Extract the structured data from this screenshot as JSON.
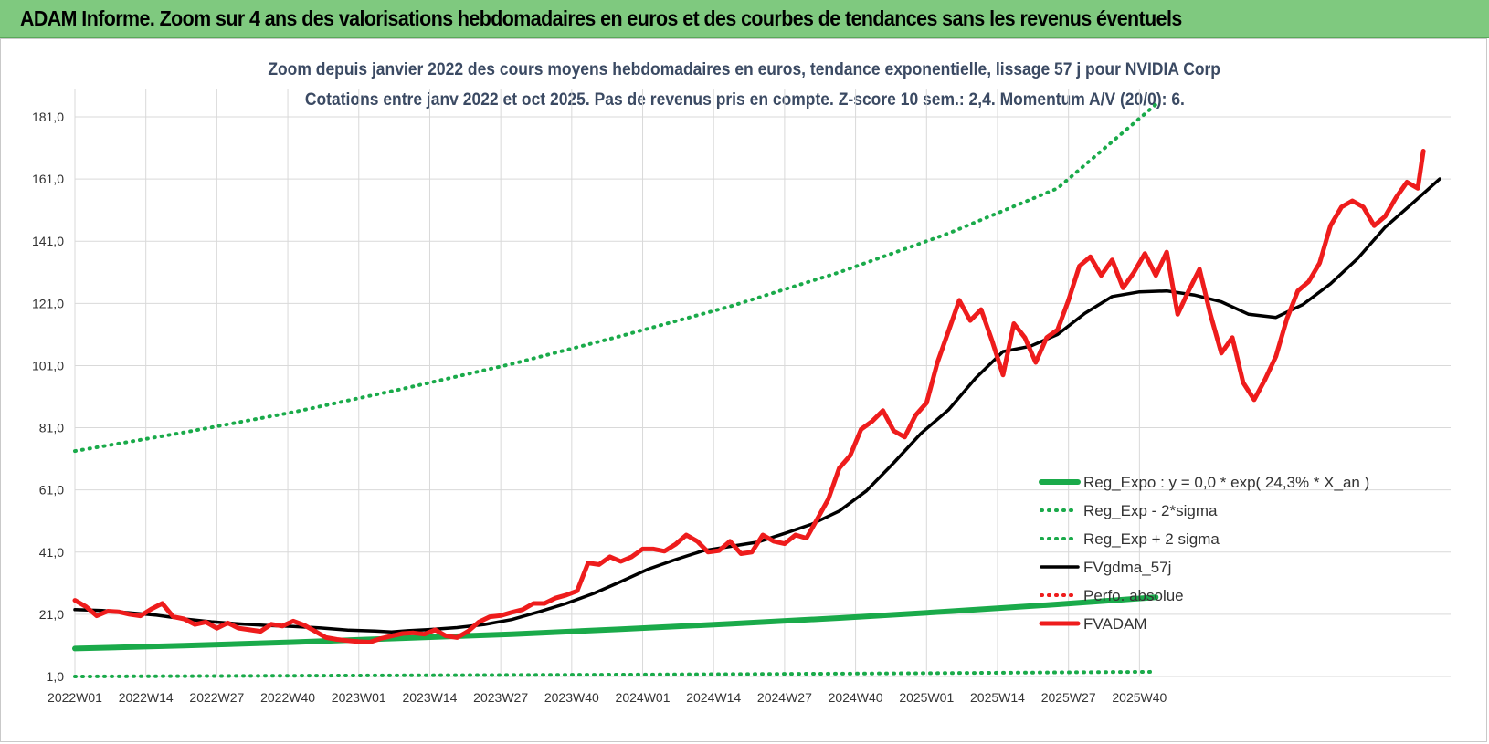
{
  "banner": {
    "title": "ADAM Informe. Zoom sur 4 ans des valorisations hebdomadaires en euros et des courbes de tendances sans les revenus éventuels"
  },
  "chart_data": {
    "type": "line",
    "title_line1": "Zoom depuis janvier 2022 des cours moyens hebdomadaires en euros, tendance exponentielle, lissage 57 j pour NVIDIA Corp",
    "title_line2": "Cotations entre janv 2022 et oct 2025. Pas de revenus pris en compte. Z-score 10 sem.: 2,4. Momentum A/V (20/0): 6.",
    "xlabel": "",
    "ylabel": "",
    "ylim": [
      1,
      181
    ],
    "yticks": [
      "1,0",
      "21,0",
      "41,0",
      "61,0",
      "81,0",
      "101,0",
      "121,0",
      "141,0",
      "161,0",
      "181,0"
    ],
    "xticks": [
      "2022W01",
      "2022W14",
      "2022W27",
      "2022W40",
      "2023W01",
      "2023W14",
      "2023W27",
      "2023W40",
      "2024W01",
      "2024W14",
      "2024W27",
      "2024W40",
      "2025W01",
      "2025W14",
      "2025W27",
      "2025W40"
    ],
    "grid": true,
    "legend_position": "bottom-right",
    "colors": {
      "green": "#1aaa4a",
      "black": "#000000",
      "red": "#ee1c1c"
    },
    "series": [
      {
        "name": "Reg_Expo : y = 0,0 * exp( 24,3% * X_an )",
        "style": "solid-green",
        "points": [
          [
            0,
            10
          ],
          [
            20,
            10.9
          ],
          [
            40,
            12
          ],
          [
            60,
            13.3
          ],
          [
            80,
            14.6
          ],
          [
            100,
            16.2
          ],
          [
            120,
            17.9
          ],
          [
            140,
            19.8
          ],
          [
            160,
            21.9
          ],
          [
            180,
            24.2
          ],
          [
            198,
            26.5
          ]
        ]
      },
      {
        "name": "Reg_Exp - 2*sigma",
        "style": "dotted-green",
        "points": [
          [
            0,
            1.0
          ],
          [
            50,
            1.3
          ],
          [
            100,
            1.6
          ],
          [
            150,
            2.0
          ],
          [
            198,
            2.5
          ]
        ]
      },
      {
        "name": "Reg_Exp + 2 sigma",
        "style": "dotted-green",
        "points": [
          [
            0,
            73.5
          ],
          [
            20,
            79.5
          ],
          [
            40,
            86
          ],
          [
            60,
            93.5
          ],
          [
            80,
            101.5
          ],
          [
            100,
            110.5
          ],
          [
            120,
            120
          ],
          [
            140,
            131
          ],
          [
            160,
            143.5
          ],
          [
            180,
            158
          ],
          [
            198,
            185
          ]
        ]
      },
      {
        "name": "FVgdma_57j",
        "style": "solid-black",
        "points": [
          [
            0,
            22.5
          ],
          [
            5,
            22.2
          ],
          [
            10,
            21.5
          ],
          [
            15,
            20.7
          ],
          [
            20,
            19.5
          ],
          [
            25,
            18.6
          ],
          [
            30,
            17.9
          ],
          [
            35,
            17.4
          ],
          [
            40,
            17.1
          ],
          [
            45,
            16.6
          ],
          [
            50,
            15.9
          ],
          [
            55,
            15.6
          ],
          [
            58,
            15.3
          ],
          [
            61,
            15.7
          ],
          [
            65,
            16.1
          ],
          [
            70,
            16.7
          ],
          [
            75,
            17.7
          ],
          [
            80,
            19.3
          ],
          [
            85,
            21.8
          ],
          [
            90,
            24.5
          ],
          [
            95,
            27.7
          ],
          [
            100,
            31.5
          ],
          [
            105,
            35.5
          ],
          [
            110,
            38.6
          ],
          [
            115,
            41.4
          ],
          [
            120,
            42.8
          ],
          [
            125,
            44.2
          ],
          [
            130,
            47
          ],
          [
            135,
            50
          ],
          [
            140,
            54.2
          ],
          [
            145,
            60.7
          ],
          [
            150,
            69.7
          ],
          [
            155,
            79.2
          ],
          [
            160,
            86.7
          ],
          [
            165,
            97
          ],
          [
            170,
            105.5
          ],
          [
            175,
            107.2
          ],
          [
            180,
            111
          ],
          [
            185,
            117.8
          ],
          [
            190,
            123.2
          ],
          [
            195,
            124.7
          ],
          [
            200,
            125
          ],
          [
            205,
            123.7
          ],
          [
            210,
            121.5
          ],
          [
            215,
            117.5
          ],
          [
            220,
            116.5
          ],
          [
            225,
            120.7
          ],
          [
            230,
            127.3
          ],
          [
            235,
            135.5
          ],
          [
            240,
            145.5
          ],
          [
            245,
            153.2
          ],
          [
            250,
            161
          ]
        ]
      },
      {
        "name": "Perfo. absolue",
        "style": "dotted-red",
        "points": []
      },
      {
        "name": "FVADAM",
        "style": "solid-red",
        "points": [
          [
            0,
            25.5
          ],
          [
            2,
            23.5
          ],
          [
            4,
            20.5
          ],
          [
            6,
            22
          ],
          [
            8,
            21.8
          ],
          [
            10,
            21
          ],
          [
            12,
            20.5
          ],
          [
            14,
            22.7
          ],
          [
            16,
            24.5
          ],
          [
            18,
            20.2
          ],
          [
            20,
            19.5
          ],
          [
            22,
            17.7
          ],
          [
            24,
            18.5
          ],
          [
            26,
            16.5
          ],
          [
            28,
            18.2
          ],
          [
            30,
            16.5
          ],
          [
            32,
            16
          ],
          [
            34,
            15.5
          ],
          [
            36,
            17.8
          ],
          [
            38,
            17.2
          ],
          [
            40,
            18.8
          ],
          [
            42,
            17.5
          ],
          [
            44,
            15.5
          ],
          [
            46,
            13.5
          ],
          [
            48,
            12.9
          ],
          [
            50,
            12.5
          ],
          [
            52,
            12.2
          ],
          [
            54,
            12
          ],
          [
            56,
            13.2
          ],
          [
            58,
            14
          ],
          [
            60,
            14.8
          ],
          [
            62,
            15
          ],
          [
            64,
            14.6
          ],
          [
            66,
            16
          ],
          [
            68,
            14
          ],
          [
            70,
            13.5
          ],
          [
            72,
            15.5
          ],
          [
            74,
            18.5
          ],
          [
            76,
            20.2
          ],
          [
            78,
            20.6
          ],
          [
            80,
            21.6
          ],
          [
            82,
            22.5
          ],
          [
            84,
            24.5
          ],
          [
            86,
            24.5
          ],
          [
            88,
            26.2
          ],
          [
            90,
            27.2
          ],
          [
            92,
            28.5
          ],
          [
            94,
            37.5
          ],
          [
            96,
            37
          ],
          [
            98,
            39.5
          ],
          [
            100,
            38
          ],
          [
            102,
            39.5
          ],
          [
            104,
            42
          ],
          [
            106,
            42
          ],
          [
            108,
            41.3
          ],
          [
            110,
            43.5
          ],
          [
            112,
            46.5
          ],
          [
            114,
            44.5
          ],
          [
            116,
            41
          ],
          [
            118,
            41.5
          ],
          [
            120,
            44.5
          ],
          [
            122,
            40.5
          ],
          [
            124,
            41
          ],
          [
            126,
            46.5
          ],
          [
            128,
            44.5
          ],
          [
            130,
            43.7
          ],
          [
            132,
            46.5
          ],
          [
            134,
            45.5
          ],
          [
            136,
            51.7
          ],
          [
            138,
            58
          ],
          [
            140,
            68
          ],
          [
            142,
            72
          ],
          [
            144,
            80.5
          ],
          [
            146,
            83
          ],
          [
            148,
            86.5
          ],
          [
            150,
            80
          ],
          [
            152,
            78
          ],
          [
            154,
            85
          ],
          [
            156,
            89
          ],
          [
            158,
            102
          ],
          [
            160,
            112
          ],
          [
            162,
            122
          ],
          [
            164,
            115.5
          ],
          [
            166,
            119
          ],
          [
            168,
            109
          ],
          [
            170,
            98
          ],
          [
            172,
            114.5
          ],
          [
            174,
            110
          ],
          [
            176,
            102
          ],
          [
            178,
            110
          ],
          [
            180,
            112.5
          ],
          [
            182,
            122
          ],
          [
            184,
            133
          ],
          [
            186,
            136
          ],
          [
            188,
            130
          ],
          [
            190,
            135
          ],
          [
            192,
            126
          ],
          [
            194,
            131
          ],
          [
            196,
            137
          ],
          [
            198,
            130
          ],
          [
            200,
            137.5
          ],
          [
            202,
            117.5
          ],
          [
            204,
            125
          ],
          [
            206,
            132
          ],
          [
            208,
            117.5
          ],
          [
            210,
            105
          ],
          [
            212,
            110
          ],
          [
            214,
            95.5
          ],
          [
            216,
            90
          ],
          [
            218,
            96.5
          ],
          [
            220,
            104
          ],
          [
            222,
            116
          ],
          [
            224,
            125
          ],
          [
            226,
            128
          ],
          [
            228,
            134
          ],
          [
            230,
            146
          ],
          [
            232,
            152
          ],
          [
            234,
            154
          ],
          [
            236,
            152
          ],
          [
            238,
            146
          ],
          [
            240,
            149
          ],
          [
            242,
            155
          ],
          [
            244,
            160
          ],
          [
            246,
            158
          ],
          [
            247,
            170
          ]
        ]
      }
    ]
  }
}
